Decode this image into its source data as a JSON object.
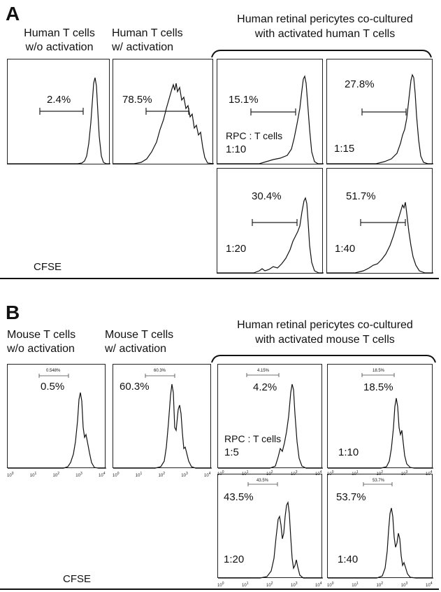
{
  "panel_a": {
    "letter": "A",
    "col1": [
      "Human T cells",
      "w/o activation"
    ],
    "col2": [
      "Human T cells",
      "w/ activation"
    ],
    "coculture": [
      "Human retinal pericytes co-cultured",
      "with activated human T cells"
    ],
    "rpc_label": "RPC : T cells",
    "xlabel": "CFSE",
    "plots": [
      {
        "pct": "2.4%",
        "ratio": ""
      },
      {
        "pct": "78.5%",
        "ratio": ""
      },
      {
        "pct": "15.1%",
        "ratio": "1:10"
      },
      {
        "pct": "27.8%",
        "ratio": "1:15"
      },
      {
        "pct": "30.4%",
        "ratio": "1:20"
      },
      {
        "pct": "51.7%",
        "ratio": "1:40"
      }
    ]
  },
  "panel_b": {
    "letter": "B",
    "col1": [
      "Mouse T cells",
      "w/o activation"
    ],
    "col2": [
      "Mouse T cells",
      "w/ activation"
    ],
    "coculture": [
      "Human retinal pericytes co-cultured",
      "with activated mouse T cells"
    ],
    "rpc_label": "RPC : T cells",
    "xlabel": "CFSE",
    "axis_ticks": [
      "10",
      "10",
      "10",
      "10",
      "10"
    ],
    "axis_exps": [
      "0",
      "1",
      "2",
      "3",
      "4"
    ],
    "plots": [
      {
        "pct": "0.5%",
        "gate": "0.548%",
        "ratio": ""
      },
      {
        "pct": "60.3%",
        "gate": "60.3%",
        "ratio": ""
      },
      {
        "pct": "4.2%",
        "gate": "4.15%",
        "ratio": "1:5"
      },
      {
        "pct": "18.5%",
        "gate": "18.5%",
        "ratio": "1:10"
      },
      {
        "pct": "43.5%",
        "gate": "43.5%",
        "ratio": "1:20"
      },
      {
        "pct": "53.7%",
        "gate": "53.7%",
        "ratio": "1:40"
      }
    ]
  }
}
